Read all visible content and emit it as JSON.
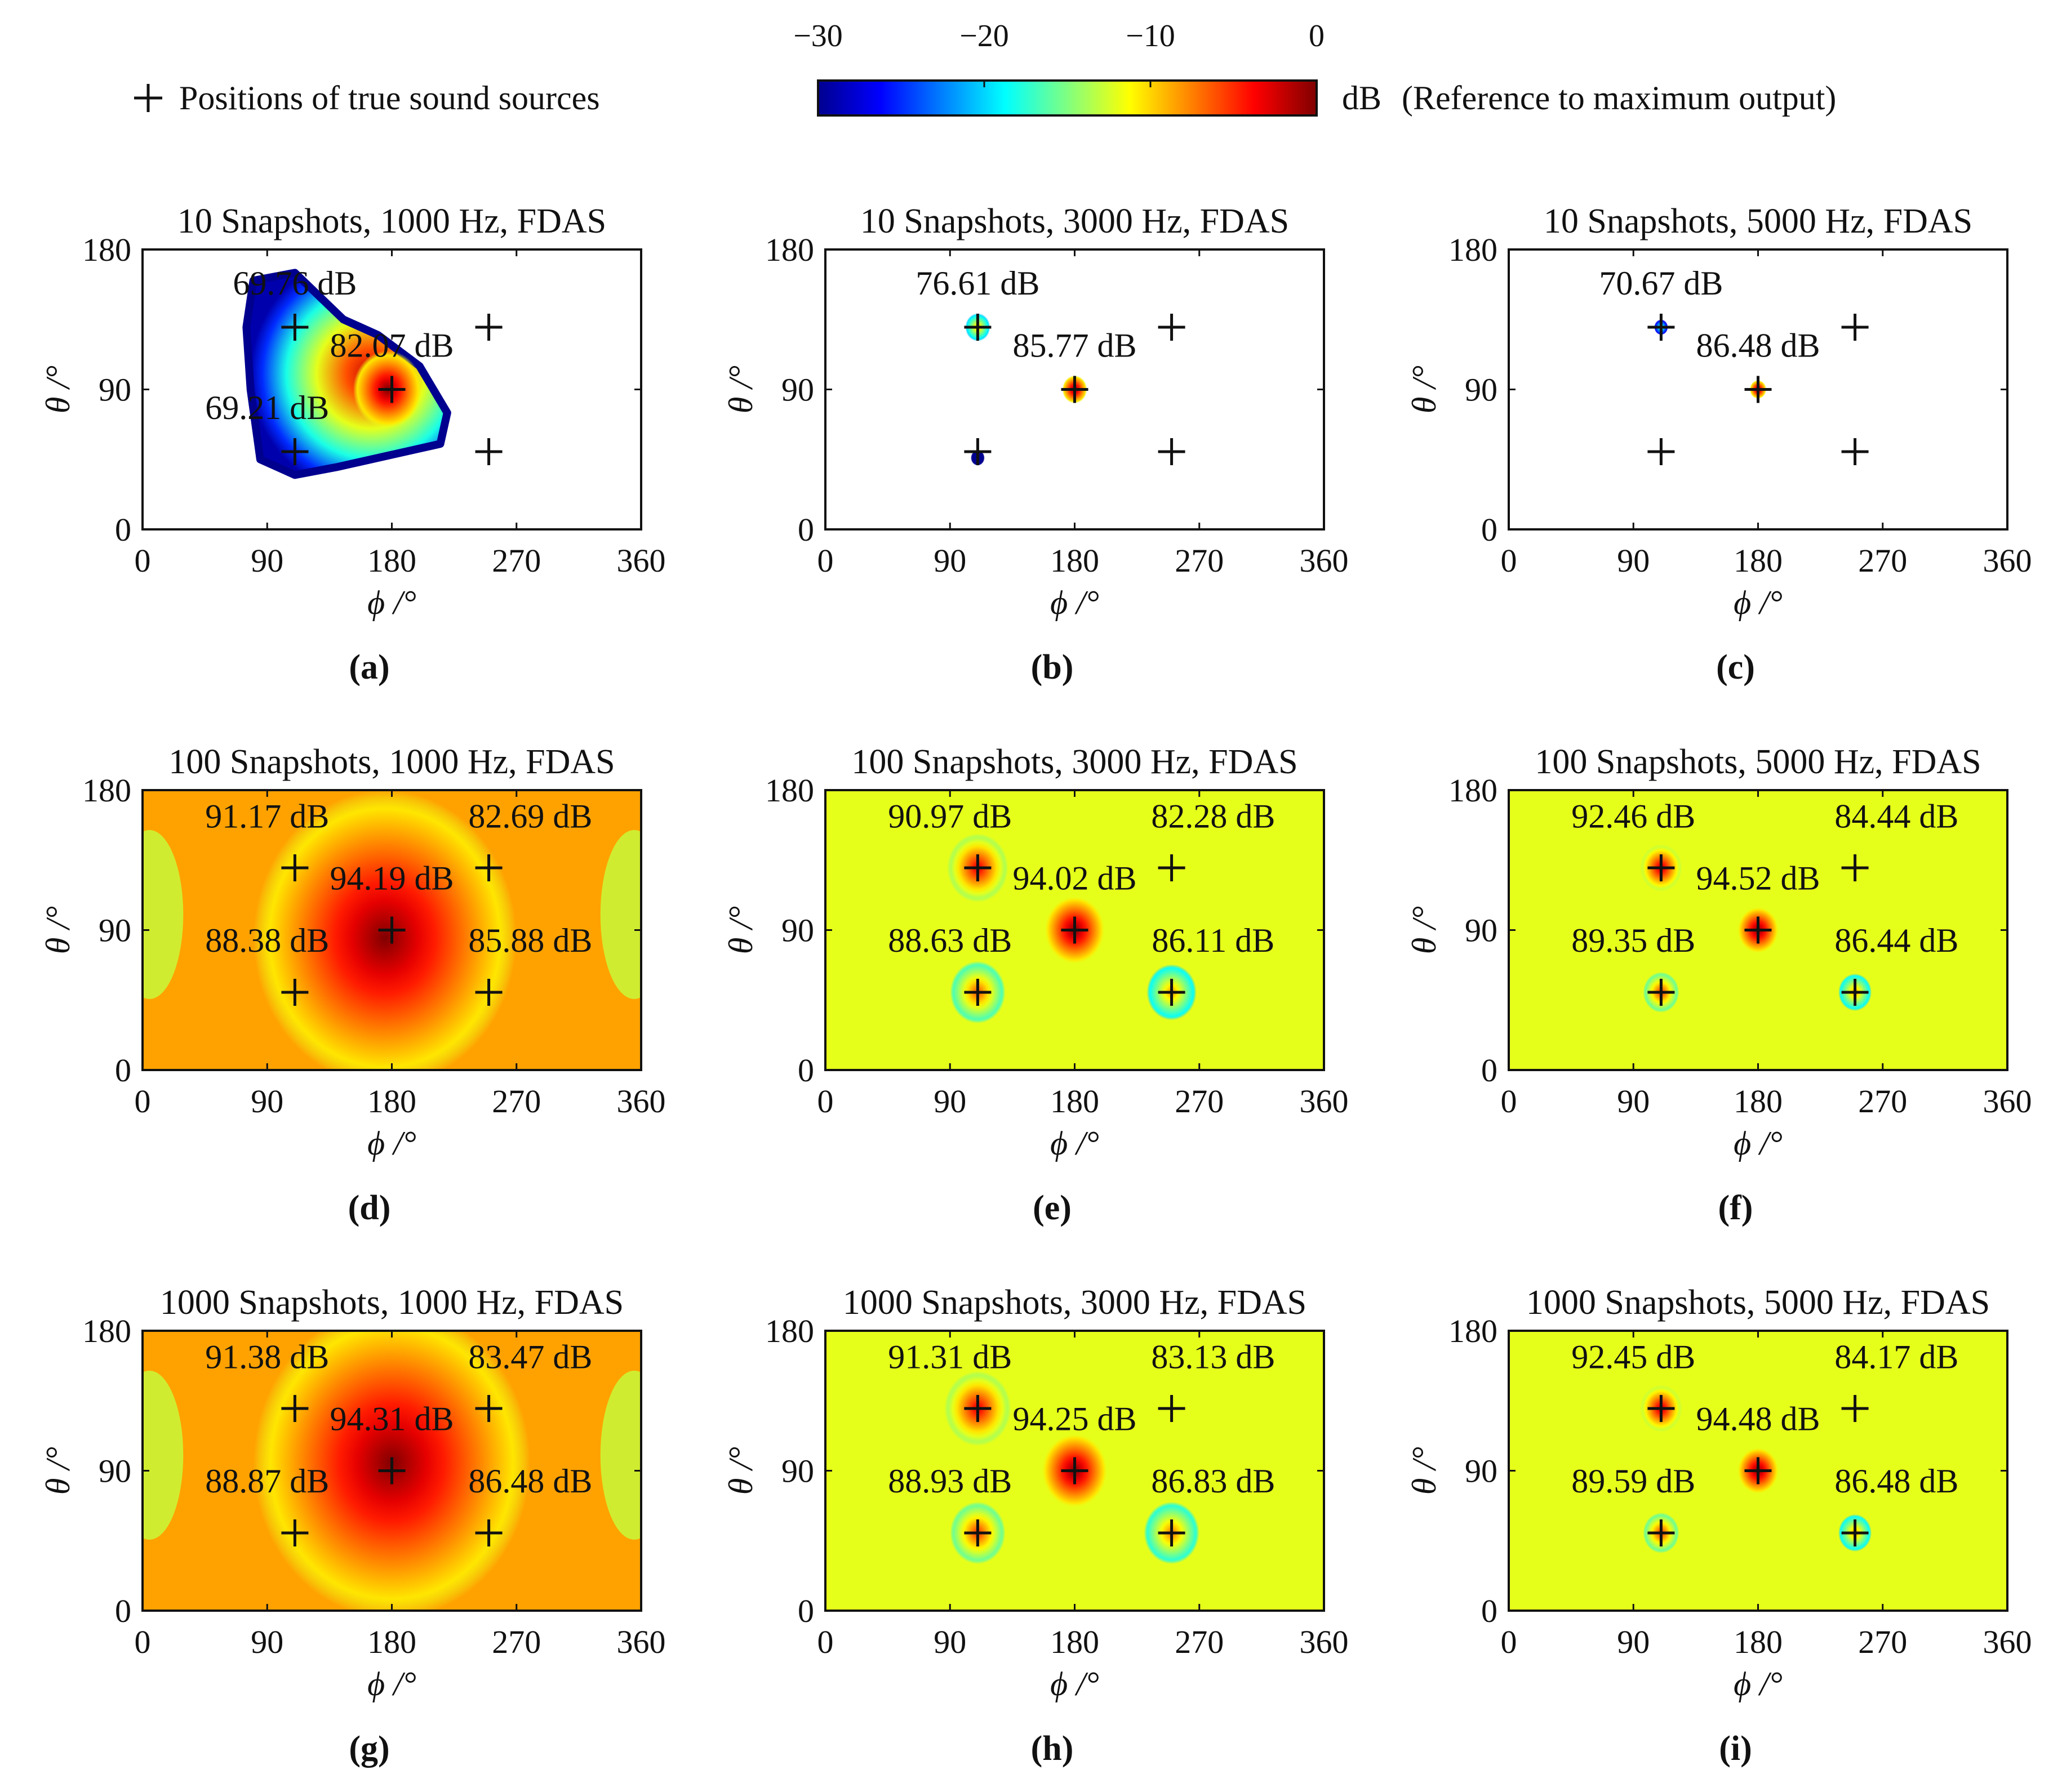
{
  "legend": {
    "marker_label": "Positions of true sound sources",
    "colorbar_unit": "dB",
    "colorbar_note": "(Reference to maximum output)",
    "colorbar_ticks": [
      "−30",
      "−20",
      "−10",
      "0"
    ],
    "colorbar_range": [
      -30,
      0
    ],
    "colormap": [
      "#00008f",
      "#0000ff",
      "#0080ff",
      "#00ffff",
      "#80ff80",
      "#ffff00",
      "#ff8000",
      "#ff0000",
      "#800000"
    ]
  },
  "axes": {
    "x_label": "ϕ /°",
    "y_label": "θ /°",
    "x_ticks": [
      "0",
      "90",
      "180",
      "270",
      "360"
    ],
    "y_ticks": [
      "0",
      "90",
      "180"
    ],
    "x_range": [
      0,
      360
    ],
    "y_range": [
      0,
      180
    ]
  },
  "chart_data": [
    {
      "type": "heatmap",
      "panel": "(a)",
      "title": "10 Snapshots, 1000 Hz, FDAS",
      "background": "blob",
      "sources": [
        {
          "x": 110,
          "y": 130
        },
        {
          "x": 250,
          "y": 130
        },
        {
          "x": 180,
          "y": 90
        },
        {
          "x": 110,
          "y": 50
        },
        {
          "x": 250,
          "y": 50
        }
      ],
      "labels": [
        {
          "text": "69.76 dB",
          "x": 110,
          "y": 151
        },
        {
          "text": "82.07 dB",
          "x": 180,
          "y": 111
        },
        {
          "text": "69.21 dB",
          "x": 90,
          "y": 71
        }
      ],
      "peaks": [
        {
          "x": 177,
          "y": 90,
          "level": 0,
          "r": 25
        }
      ]
    },
    {
      "type": "heatmap",
      "panel": "(b)",
      "title": "10 Snapshots, 3000 Hz, FDAS",
      "background": "white",
      "sources": [
        {
          "x": 110,
          "y": 130
        },
        {
          "x": 250,
          "y": 130
        },
        {
          "x": 180,
          "y": 90
        },
        {
          "x": 110,
          "y": 50
        },
        {
          "x": 250,
          "y": 50
        }
      ],
      "labels": [
        {
          "text": "76.61 dB",
          "x": 110,
          "y": 151
        },
        {
          "text": "85.77 dB",
          "x": 180,
          "y": 111
        }
      ],
      "peaks": [
        {
          "x": 110,
          "y": 130,
          "level": -9,
          "r": 9
        },
        {
          "x": 180,
          "y": 90,
          "level": 0,
          "r": 9
        },
        {
          "x": 110,
          "y": 46,
          "level": -28,
          "r": 5
        }
      ]
    },
    {
      "type": "heatmap",
      "panel": "(c)",
      "title": "10 Snapshots, 5000 Hz, FDAS",
      "background": "white",
      "sources": [
        {
          "x": 110,
          "y": 130
        },
        {
          "x": 250,
          "y": 130
        },
        {
          "x": 180,
          "y": 90
        },
        {
          "x": 110,
          "y": 50
        },
        {
          "x": 250,
          "y": 50
        }
      ],
      "labels": [
        {
          "text": "70.67 dB",
          "x": 110,
          "y": 151
        },
        {
          "text": "86.48 dB",
          "x": 180,
          "y": 111
        }
      ],
      "peaks": [
        {
          "x": 110,
          "y": 130,
          "level": -16,
          "r": 5
        },
        {
          "x": 180,
          "y": 90,
          "level": 0,
          "r": 6
        }
      ]
    },
    {
      "type": "heatmap",
      "panel": "(d)",
      "title": "100 Snapshots, 1000 Hz, FDAS",
      "background": "broad",
      "sources": [
        {
          "x": 110,
          "y": 130
        },
        {
          "x": 250,
          "y": 130
        },
        {
          "x": 180,
          "y": 90
        },
        {
          "x": 110,
          "y": 50
        },
        {
          "x": 250,
          "y": 50
        }
      ],
      "labels": [
        {
          "text": "91.17 dB",
          "x": 90,
          "y": 156
        },
        {
          "text": "82.69 dB",
          "x": 280,
          "y": 156
        },
        {
          "text": "94.19 dB",
          "x": 180,
          "y": 116
        },
        {
          "text": "88.38 dB",
          "x": 90,
          "y": 76
        },
        {
          "text": "85.88 dB",
          "x": 280,
          "y": 76
        }
      ],
      "peaks": [
        {
          "x": 175,
          "y": 85,
          "level": 0,
          "r": 95
        }
      ]
    },
    {
      "type": "heatmap",
      "panel": "(e)",
      "title": "100 Snapshots, 3000 Hz, FDAS",
      "background": "green",
      "sources": [
        {
          "x": 110,
          "y": 130
        },
        {
          "x": 250,
          "y": 130
        },
        {
          "x": 180,
          "y": 90
        },
        {
          "x": 110,
          "y": 50
        },
        {
          "x": 250,
          "y": 50
        }
      ],
      "labels": [
        {
          "text": "90.97 dB",
          "x": 90,
          "y": 156
        },
        {
          "text": "82.28 dB",
          "x": 280,
          "y": 156
        },
        {
          "text": "94.02 dB",
          "x": 180,
          "y": 116
        },
        {
          "text": "88.63 dB",
          "x": 90,
          "y": 76
        },
        {
          "text": "86.11 dB",
          "x": 280,
          "y": 76
        }
      ],
      "peaks": [
        {
          "x": 110,
          "y": 130,
          "level": -3,
          "r": 22
        },
        {
          "x": 180,
          "y": 90,
          "level": 0,
          "r": 22
        },
        {
          "x": 110,
          "y": 50,
          "level": -6,
          "r": 20
        },
        {
          "x": 250,
          "y": 50,
          "level": -8,
          "r": 18
        }
      ]
    },
    {
      "type": "heatmap",
      "panel": "(f)",
      "title": "100 Snapshots, 5000 Hz, FDAS",
      "background": "green",
      "sources": [
        {
          "x": 110,
          "y": 130
        },
        {
          "x": 250,
          "y": 130
        },
        {
          "x": 180,
          "y": 90
        },
        {
          "x": 110,
          "y": 50
        },
        {
          "x": 250,
          "y": 50
        }
      ],
      "labels": [
        {
          "text": "92.46 dB",
          "x": 90,
          "y": 156
        },
        {
          "text": "84.44 dB",
          "x": 280,
          "y": 156
        },
        {
          "text": "94.52 dB",
          "x": 180,
          "y": 116
        },
        {
          "text": "89.35 dB",
          "x": 90,
          "y": 76
        },
        {
          "text": "86.44 dB",
          "x": 280,
          "y": 76
        }
      ],
      "peaks": [
        {
          "x": 110,
          "y": 130,
          "level": -2,
          "r": 15
        },
        {
          "x": 180,
          "y": 90,
          "level": 0,
          "r": 15
        },
        {
          "x": 110,
          "y": 50,
          "level": -5,
          "r": 13
        },
        {
          "x": 250,
          "y": 50,
          "level": -8,
          "r": 12
        }
      ]
    },
    {
      "type": "heatmap",
      "panel": "(g)",
      "title": "1000 Snapshots, 1000 Hz, FDAS",
      "background": "broad",
      "sources": [
        {
          "x": 110,
          "y": 130
        },
        {
          "x": 250,
          "y": 130
        },
        {
          "x": 180,
          "y": 90
        },
        {
          "x": 110,
          "y": 50
        },
        {
          "x": 250,
          "y": 50
        }
      ],
      "labels": [
        {
          "text": "91.38 dB",
          "x": 90,
          "y": 156
        },
        {
          "text": "83.47 dB",
          "x": 280,
          "y": 156
        },
        {
          "text": "94.31 dB",
          "x": 180,
          "y": 116
        },
        {
          "text": "88.87 dB",
          "x": 90,
          "y": 76
        },
        {
          "text": "86.48 dB",
          "x": 280,
          "y": 76
        }
      ],
      "peaks": [
        {
          "x": 180,
          "y": 95,
          "level": 0,
          "r": 100
        }
      ]
    },
    {
      "type": "heatmap",
      "panel": "(h)",
      "title": "1000 Snapshots, 3000 Hz, FDAS",
      "background": "green",
      "sources": [
        {
          "x": 110,
          "y": 130
        },
        {
          "x": 250,
          "y": 130
        },
        {
          "x": 180,
          "y": 90
        },
        {
          "x": 110,
          "y": 50
        },
        {
          "x": 250,
          "y": 50
        }
      ],
      "labels": [
        {
          "text": "91.31 dB",
          "x": 90,
          "y": 156
        },
        {
          "text": "83.13 dB",
          "x": 280,
          "y": 156
        },
        {
          "text": "94.25 dB",
          "x": 180,
          "y": 116
        },
        {
          "text": "88.93 dB",
          "x": 90,
          "y": 76
        },
        {
          "text": "86.83 dB",
          "x": 280,
          "y": 76
        }
      ],
      "peaks": [
        {
          "x": 110,
          "y": 130,
          "level": -3,
          "r": 24
        },
        {
          "x": 180,
          "y": 90,
          "level": 0,
          "r": 24
        },
        {
          "x": 110,
          "y": 50,
          "level": -5,
          "r": 20
        },
        {
          "x": 250,
          "y": 50,
          "level": -7,
          "r": 20
        }
      ]
    },
    {
      "type": "heatmap",
      "panel": "(i)",
      "title": "1000 Snapshots, 5000 Hz, FDAS",
      "background": "green",
      "sources": [
        {
          "x": 110,
          "y": 130
        },
        {
          "x": 250,
          "y": 130
        },
        {
          "x": 180,
          "y": 90
        },
        {
          "x": 110,
          "y": 50
        },
        {
          "x": 250,
          "y": 50
        }
      ],
      "labels": [
        {
          "text": "92.45 dB",
          "x": 90,
          "y": 156
        },
        {
          "text": "84.17 dB",
          "x": 280,
          "y": 156
        },
        {
          "text": "94.48 dB",
          "x": 180,
          "y": 116
        },
        {
          "text": "89.59 dB",
          "x": 90,
          "y": 76
        },
        {
          "text": "86.48 dB",
          "x": 280,
          "y": 76
        }
      ],
      "peaks": [
        {
          "x": 110,
          "y": 130,
          "level": -2,
          "r": 15
        },
        {
          "x": 180,
          "y": 90,
          "level": 0,
          "r": 15
        },
        {
          "x": 110,
          "y": 50,
          "level": -5,
          "r": 13
        },
        {
          "x": 250,
          "y": 50,
          "level": -8,
          "r": 12
        }
      ]
    }
  ]
}
